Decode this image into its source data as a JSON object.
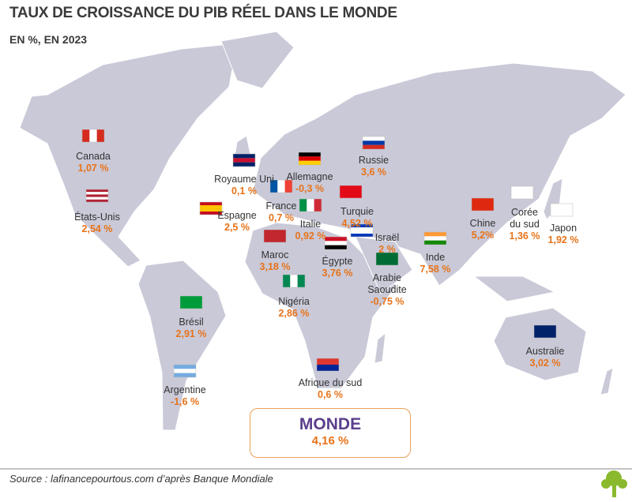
{
  "header": {
    "title": "TAUX DE CROISSANCE DU PIB RÉEL DANS LE MONDE",
    "subtitle": "EN %, EN 2023"
  },
  "countries": [
    {
      "name": "Canada",
      "value": "1,07 %"
    },
    {
      "name": "États-Unis",
      "value": "2,54 %"
    },
    {
      "name": "Royaume Uni",
      "value": "0,1 %"
    },
    {
      "name": "Allemagne",
      "value": "-0,3 %"
    },
    {
      "name": "France",
      "value": "0,7 %"
    },
    {
      "name": "Espagne",
      "value": "2,5 %"
    },
    {
      "name": "Italie",
      "value": "0,92 %"
    },
    {
      "name": "Turquie",
      "value": "4,52 %"
    },
    {
      "name": "Russie",
      "value": "3,6 %"
    },
    {
      "name": "Maroc",
      "value": "3,18 %"
    },
    {
      "name": "Égypte",
      "value": "3,76 %"
    },
    {
      "name": "Israël",
      "value": "2 %"
    },
    {
      "name": "Arabie Saoudite",
      "value": "-0,75 %"
    },
    {
      "name": "Inde",
      "value": "7,58 %"
    },
    {
      "name": "Chine",
      "value": "5,2%"
    },
    {
      "name": "Corée du sud",
      "value": "1,36 %"
    },
    {
      "name": "Japon",
      "value": "1,92 %"
    },
    {
      "name": "Nigéria",
      "value": "2,86 %"
    },
    {
      "name": "Brésil",
      "value": "2,91 %"
    },
    {
      "name": "Afrique du sud",
      "value": "0,6 %"
    },
    {
      "name": "Argentine",
      "value": "-1,6 %"
    },
    {
      "name": "Australie",
      "value": "3,02 %"
    }
  ],
  "world": {
    "name": "MONDE",
    "value": "4,16 %"
  },
  "footer": {
    "source": "Source : lafinancepourtous.com d’après Banque Mondiale"
  }
}
